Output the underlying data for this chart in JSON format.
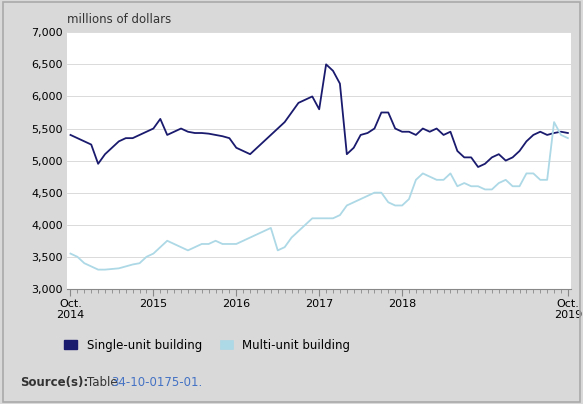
{
  "title_ylabel": "millions of dollars",
  "background_color": "#d9d9d9",
  "plot_background": "#ffffff",
  "ylim": [
    3000,
    7000
  ],
  "yticks": [
    3000,
    3500,
    4000,
    4500,
    5000,
    5500,
    6000,
    6500,
    7000
  ],
  "single_unit": [
    5400,
    5350,
    5300,
    5250,
    4950,
    5100,
    5200,
    5300,
    5350,
    5350,
    5400,
    5450,
    5500,
    5650,
    5400,
    5450,
    5500,
    5450,
    5430,
    5430,
    5420,
    5400,
    5380,
    5350,
    5200,
    5150,
    5100,
    5200,
    5300,
    5400,
    5500,
    5600,
    5750,
    5900,
    5950,
    6000,
    5800,
    6500,
    6400,
    6200,
    5100,
    5200,
    5400,
    5430,
    5500,
    5750,
    5750,
    5500,
    5450,
    5450,
    5400,
    5500,
    5450,
    5500,
    5400,
    5450,
    5150,
    5050,
    5050,
    4900,
    4950,
    5050,
    5100,
    5000,
    5050,
    5150,
    5300,
    5400,
    5450,
    5400,
    5430,
    5450,
    5430
  ],
  "multi_unit": [
    3550,
    3500,
    3400,
    3350,
    3300,
    3300,
    3310,
    3320,
    3350,
    3380,
    3400,
    3500,
    3550,
    3650,
    3750,
    3700,
    3650,
    3600,
    3650,
    3700,
    3700,
    3750,
    3700,
    3700,
    3700,
    3750,
    3800,
    3850,
    3900,
    3950,
    3600,
    3650,
    3800,
    3900,
    4000,
    4100,
    4100,
    4100,
    4100,
    4150,
    4300,
    4350,
    4400,
    4450,
    4500,
    4500,
    4350,
    4300,
    4300,
    4400,
    4700,
    4800,
    4750,
    4700,
    4700,
    4800,
    4600,
    4650,
    4600,
    4600,
    4550,
    4550,
    4650,
    4700,
    4600,
    4600,
    4800,
    4800,
    4700,
    4700,
    5600,
    5400,
    5350
  ],
  "single_color": "#1a1a6e",
  "multi_color": "#add8e6",
  "legend_single": "Single-unit building",
  "legend_multi": "Multi-unit building",
  "source_bold": "Source(s):",
  "source_table": "34-10-0175-01",
  "x_tick_labels": [
    "Oct.\n2014",
    "2015",
    "2016",
    "2017",
    "2018",
    "Oct.\n2019"
  ],
  "x_tick_positions": [
    0,
    12,
    24,
    36,
    48,
    72
  ]
}
